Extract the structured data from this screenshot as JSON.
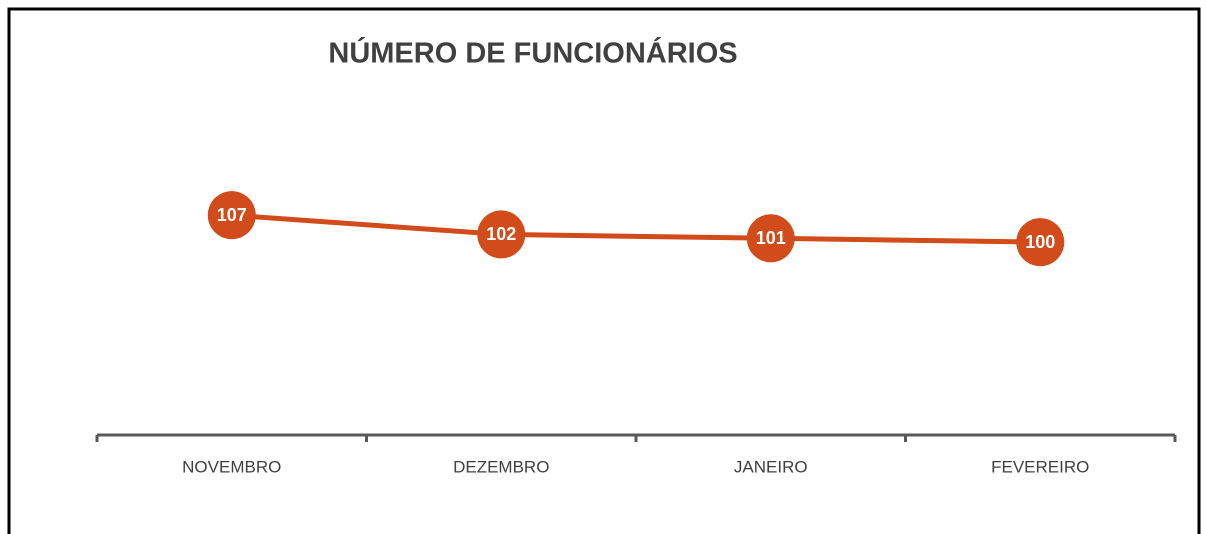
{
  "chart_data": {
    "type": "line",
    "title": "NÚMERO DE FUNCIONÁRIOS",
    "categories": [
      "NOVEMBRO",
      "DEZEMBRO",
      "JANEIRO",
      "FEVEREIRO"
    ],
    "values": [
      107,
      102,
      101,
      100
    ],
    "color": "#d24b1a",
    "ylim": [
      50,
      120
    ]
  }
}
